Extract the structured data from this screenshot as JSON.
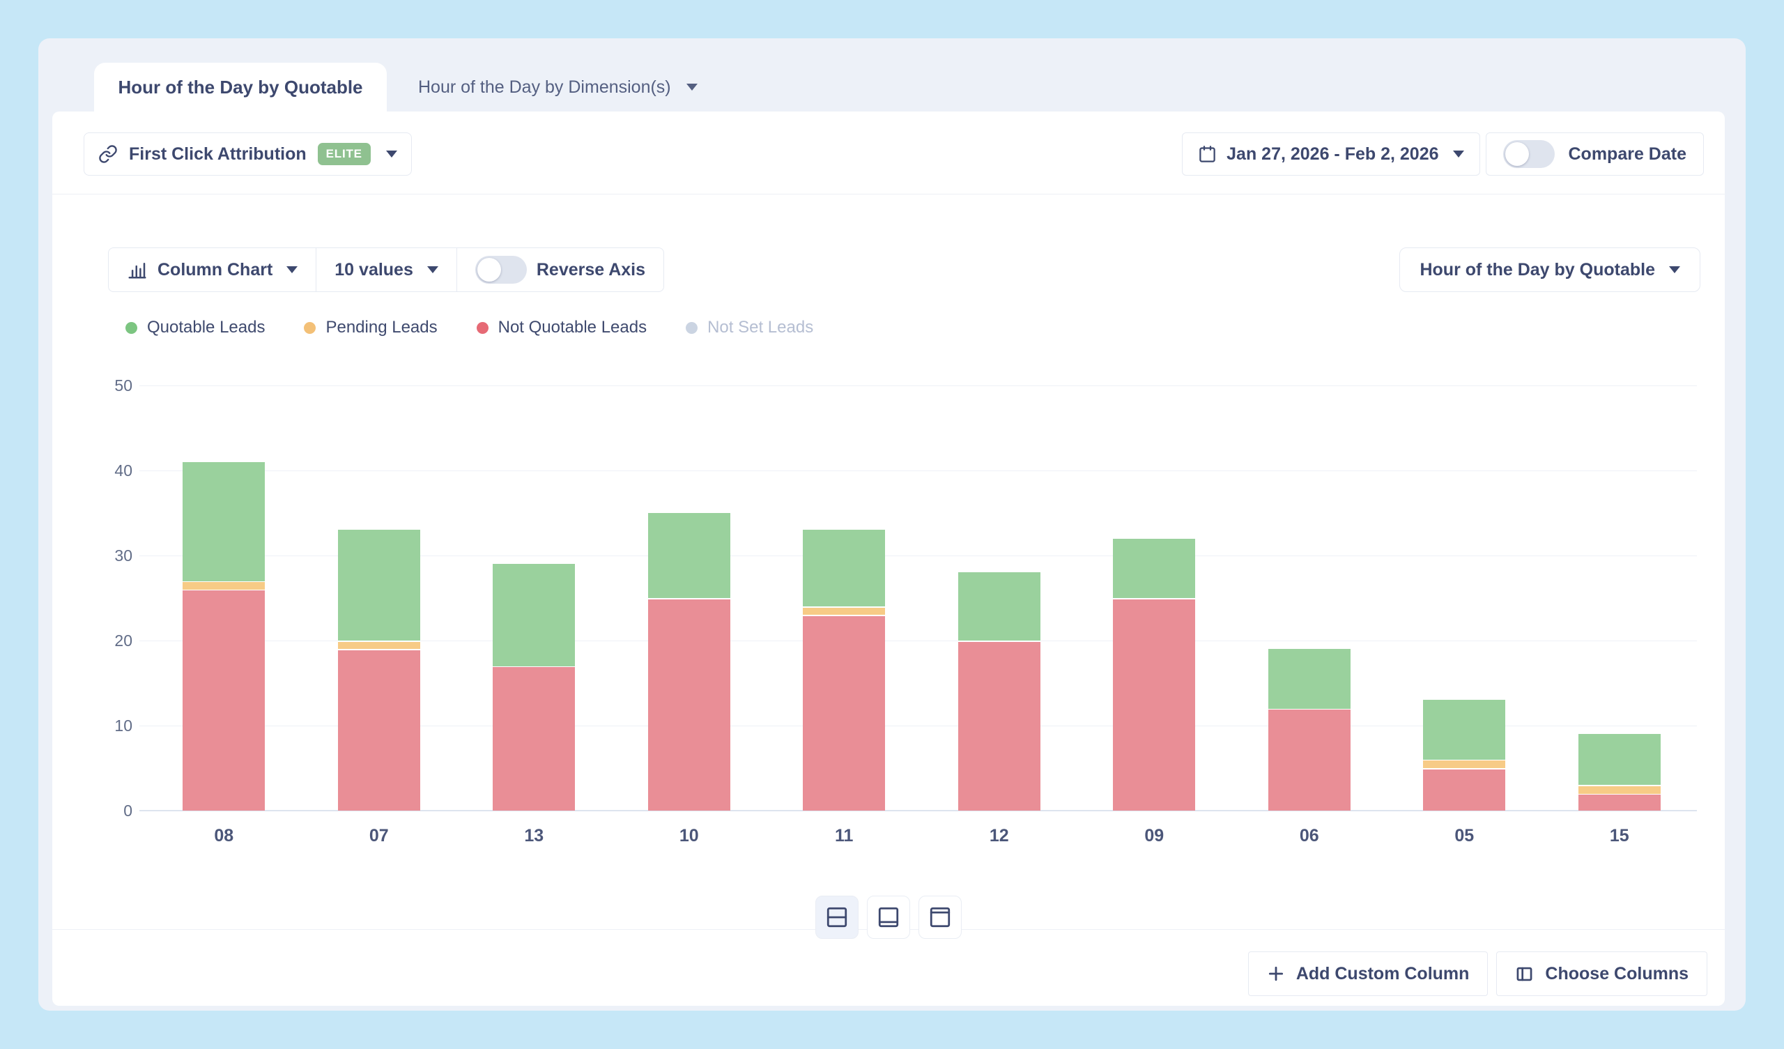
{
  "tabs": {
    "active": "Hour of the Day by Quotable",
    "secondary": "Hour of the Day by Dimension(s)"
  },
  "toolbar": {
    "attribution_label": "First Click Attribution",
    "attribution_badge": "ELITE",
    "date_range": "Jan 27, 2026 - Feb 2, 2026",
    "compare_label": "Compare Date",
    "compare_enabled": false
  },
  "chart_controls": {
    "chart_type_label": "Column Chart",
    "values_label": "10 values",
    "reverse_axis_label": "Reverse Axis",
    "reverse_axis_enabled": false,
    "dimension_selector_label": "Hour of the Day by Quotable"
  },
  "legend": [
    {
      "label": "Quotable Leads",
      "color": "#7cc581",
      "muted": false
    },
    {
      "label": "Pending Leads",
      "color": "#f3c077",
      "muted": false
    },
    {
      "label": "Not Quotable Leads",
      "color": "#e66a75",
      "muted": false
    },
    {
      "label": "Not Set Leads",
      "color": "#cbd4e2",
      "muted": true
    }
  ],
  "chart_data": {
    "type": "bar",
    "stacked": true,
    "title": "",
    "xlabel": "",
    "ylabel": "",
    "categories": [
      "08",
      "07",
      "13",
      "10",
      "11",
      "12",
      "09",
      "06",
      "05",
      "15"
    ],
    "series": [
      {
        "name": "Not Quotable Leads",
        "color": "#e98e96",
        "values": [
          26,
          19,
          17,
          25,
          23,
          20,
          25,
          12,
          5,
          2
        ]
      },
      {
        "name": "Pending Leads",
        "color": "#f7cb86",
        "values": [
          1,
          1,
          0,
          0,
          1,
          0,
          0,
          0,
          1,
          1
        ]
      },
      {
        "name": "Quotable Leads",
        "color": "#9ad19d",
        "values": [
          14,
          13,
          12,
          10,
          9,
          8,
          7,
          7,
          7,
          6
        ]
      }
    ],
    "totals": [
      41,
      33,
      29,
      35,
      33,
      28,
      32,
      19,
      13,
      9
    ],
    "ylim": [
      0,
      50
    ],
    "yticks": [
      0,
      10,
      20,
      30,
      40,
      50
    ],
    "grid": true,
    "legend_position": "top-left"
  },
  "footer": {
    "layout_views": [
      {
        "icon": "split-horizontal-icon",
        "active": true
      },
      {
        "icon": "panel-bottom-icon",
        "active": false
      },
      {
        "icon": "panel-top-icon",
        "active": false
      }
    ],
    "add_custom_column_label": "Add Custom Column",
    "choose_columns_label": "Choose Columns"
  },
  "colors": {
    "page_background": "#c6e7f7",
    "panel_background": "#edf1f8",
    "card_background": "#ffffff",
    "badge_green": "#8fc190",
    "text_navy": "#3d486e",
    "grid_line": "#eef1f7",
    "axis_line": "#dde4ef"
  }
}
